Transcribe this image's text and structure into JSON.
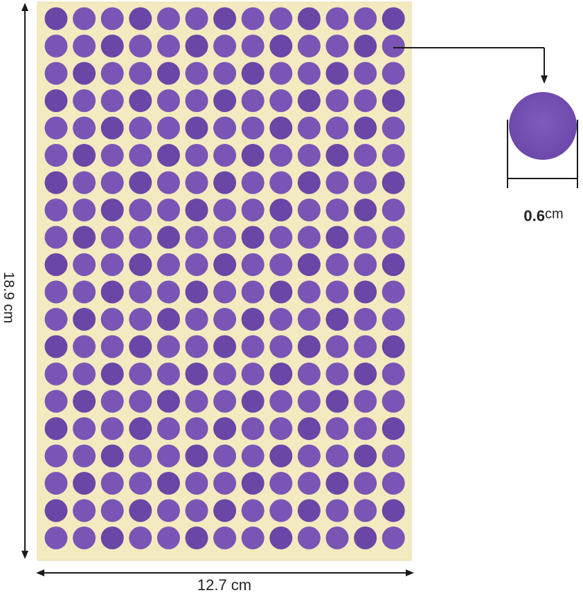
{
  "product": {
    "sticker_color": "#7a55b5",
    "sticker_color_dark": "#6a46a6",
    "sheet_color": "#f4eac0",
    "line_color": "#1a1a1a",
    "sheet_rows": 20,
    "sheet_cols": 13
  },
  "dimensions": {
    "height_label": "18.9 cm",
    "width_label": "12.7 cm",
    "diameter_value": "0.6",
    "diameter_unit": "cm"
  }
}
